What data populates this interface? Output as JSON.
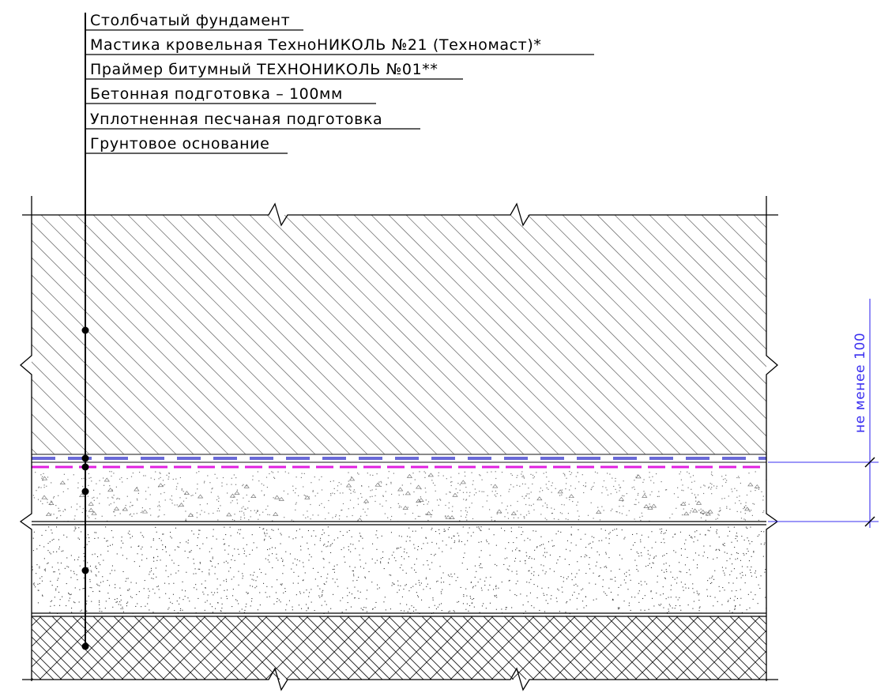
{
  "callout": {
    "labels": [
      "Столбчатый фундамент",
      "Мастика кровельная ТехноНИКОЛЬ №21 (Техномаст)*",
      "Праймер битумный ТЕХНОНИКОЛЬ №01**",
      "Бетонная подготовка – 100мм",
      "Уплотненная песчаная подготовка",
      "Грунтовое основание"
    ]
  },
  "dimension": {
    "label": "не менее 100"
  },
  "colors": {
    "line": "#000000",
    "hatch": "#7a7a7a",
    "membrane": "#6a6ad8",
    "primer": "#e020e0",
    "dimension": "#3a2ff0"
  }
}
